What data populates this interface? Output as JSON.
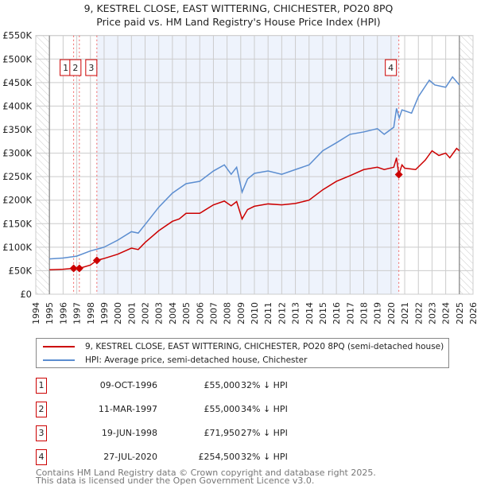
{
  "chart_data": {
    "type": "line",
    "title": "9, KESTREL CLOSE, EAST WITTERING, CHICHESTER, PO20 8PQ",
    "subtitle": "Price paid vs. HM Land Registry's House Price Index (HPI)",
    "xlim": [
      1994,
      2026
    ],
    "ylim": [
      0,
      550000
    ],
    "x_ticks": [
      "1994",
      "1995",
      "1996",
      "1997",
      "1998",
      "1999",
      "2000",
      "2001",
      "2002",
      "2003",
      "2004",
      "2005",
      "2006",
      "2007",
      "2008",
      "2009",
      "2010",
      "2011",
      "2012",
      "2013",
      "2014",
      "2015",
      "2016",
      "2017",
      "2018",
      "2019",
      "2020",
      "2021",
      "2022",
      "2023",
      "2024",
      "2025",
      "2026"
    ],
    "y_ticks": [
      {
        "v": 0,
        "label": "£0"
      },
      {
        "v": 50000,
        "label": "£50K"
      },
      {
        "v": 100000,
        "label": "£100K"
      },
      {
        "v": 150000,
        "label": "£150K"
      },
      {
        "v": 200000,
        "label": "£200K"
      },
      {
        "v": 250000,
        "label": "£250K"
      },
      {
        "v": 300000,
        "label": "£300K"
      },
      {
        "v": 350000,
        "label": "£350K"
      },
      {
        "v": 400000,
        "label": "£400K"
      },
      {
        "v": 450000,
        "label": "£450K"
      },
      {
        "v": 500000,
        "label": "£500K"
      },
      {
        "v": 550000,
        "label": "£550K"
      }
    ],
    "grid": true,
    "series": [
      {
        "name": "9, KESTREL CLOSE, EAST WITTERING, CHICHESTER, PO20 8PQ (semi-detached house)",
        "color": "#cc0000",
        "x": [
          1995,
          1996,
          1996.77,
          1997.19,
          1998,
          1998.47,
          1999,
          2000,
          2001,
          2001.5,
          2002,
          2003,
          2004,
          2004.5,
          2005,
          2006,
          2007,
          2007.8,
          2008.3,
          2008.7,
          2009.1,
          2009.5,
          2010,
          2011,
          2012,
          2013,
          2014,
          2015,
          2016,
          2017,
          2018,
          2019,
          2019.5,
          2020.2,
          2020.4,
          2020.57,
          2020.8,
          2021,
          2021.8,
          2022.5,
          2023,
          2023.5,
          2024,
          2024.3,
          2024.8,
          2025
        ],
        "y": [
          52000,
          53000,
          55000,
          55000,
          62000,
          71950,
          76000,
          85000,
          98000,
          95000,
          110000,
          135000,
          155000,
          160000,
          172000,
          172000,
          190000,
          198000,
          188000,
          197000,
          160000,
          180000,
          187000,
          192000,
          190000,
          193000,
          200000,
          222000,
          240000,
          252000,
          265000,
          270000,
          265000,
          270000,
          290000,
          254500,
          275000,
          268000,
          265000,
          285000,
          305000,
          295000,
          300000,
          290000,
          310000,
          305000
        ]
      },
      {
        "name": "HPI: Average price, semi-detached house, Chichester",
        "color": "#5b8dd0",
        "x": [
          1995,
          1996,
          1997,
          1998,
          1999,
          2000,
          2001,
          2001.5,
          2002,
          2003,
          2004,
          2004.5,
          2005,
          2006,
          2007,
          2007.8,
          2008.3,
          2008.7,
          2009.1,
          2009.5,
          2010,
          2011,
          2012,
          2013,
          2014,
          2015,
          2016,
          2017,
          2018,
          2019,
          2019.5,
          2020.2,
          2020.4,
          2020.6,
          2020.8,
          2021.5,
          2022,
          2022.8,
          2023.2,
          2024,
          2024.5,
          2025
        ],
        "y": [
          75000,
          77000,
          81000,
          92000,
          100000,
          115000,
          133000,
          130000,
          148000,
          185000,
          215000,
          225000,
          235000,
          240000,
          262000,
          275000,
          255000,
          270000,
          217000,
          245000,
          257000,
          262000,
          255000,
          265000,
          275000,
          305000,
          322000,
          340000,
          345000,
          352000,
          340000,
          355000,
          395000,
          375000,
          392000,
          385000,
          420000,
          455000,
          445000,
          440000,
          462000,
          445000
        ]
      }
    ],
    "sales": [
      {
        "label": "1",
        "x": 1996.77,
        "y": 55000,
        "date": "09-OCT-1996",
        "price": "£55,000",
        "hpi": "32% ↓ HPI"
      },
      {
        "label": "2",
        "x": 1997.19,
        "y": 55000,
        "date": "11-MAR-1997",
        "price": "£55,000",
        "hpi": "34% ↓ HPI"
      },
      {
        "label": "3",
        "x": 1998.47,
        "y": 71950,
        "date": "19-JUN-1998",
        "price": "£71,950",
        "hpi": "27% ↓ HPI"
      },
      {
        "label": "4",
        "x": 2020.57,
        "y": 254500,
        "date": "27-JUL-2020",
        "price": "£254,500",
        "hpi": "32% ↓ HPI"
      }
    ],
    "data_range": [
      1995,
      2025
    ],
    "colors": {
      "property": "#cc0000",
      "hpi": "#5b8dd0",
      "shade": "#eef3fc"
    }
  },
  "legend": {
    "property": "9, KESTREL CLOSE, EAST WITTERING, CHICHESTER, PO20 8PQ (semi-detached house)",
    "hpi": "HPI: Average price, semi-detached house, Chichester"
  },
  "footer": {
    "line1": "Contains HM Land Registry data © Crown copyright and database right 2025.",
    "line2": "This data is licensed under the Open Government Licence v3.0."
  }
}
